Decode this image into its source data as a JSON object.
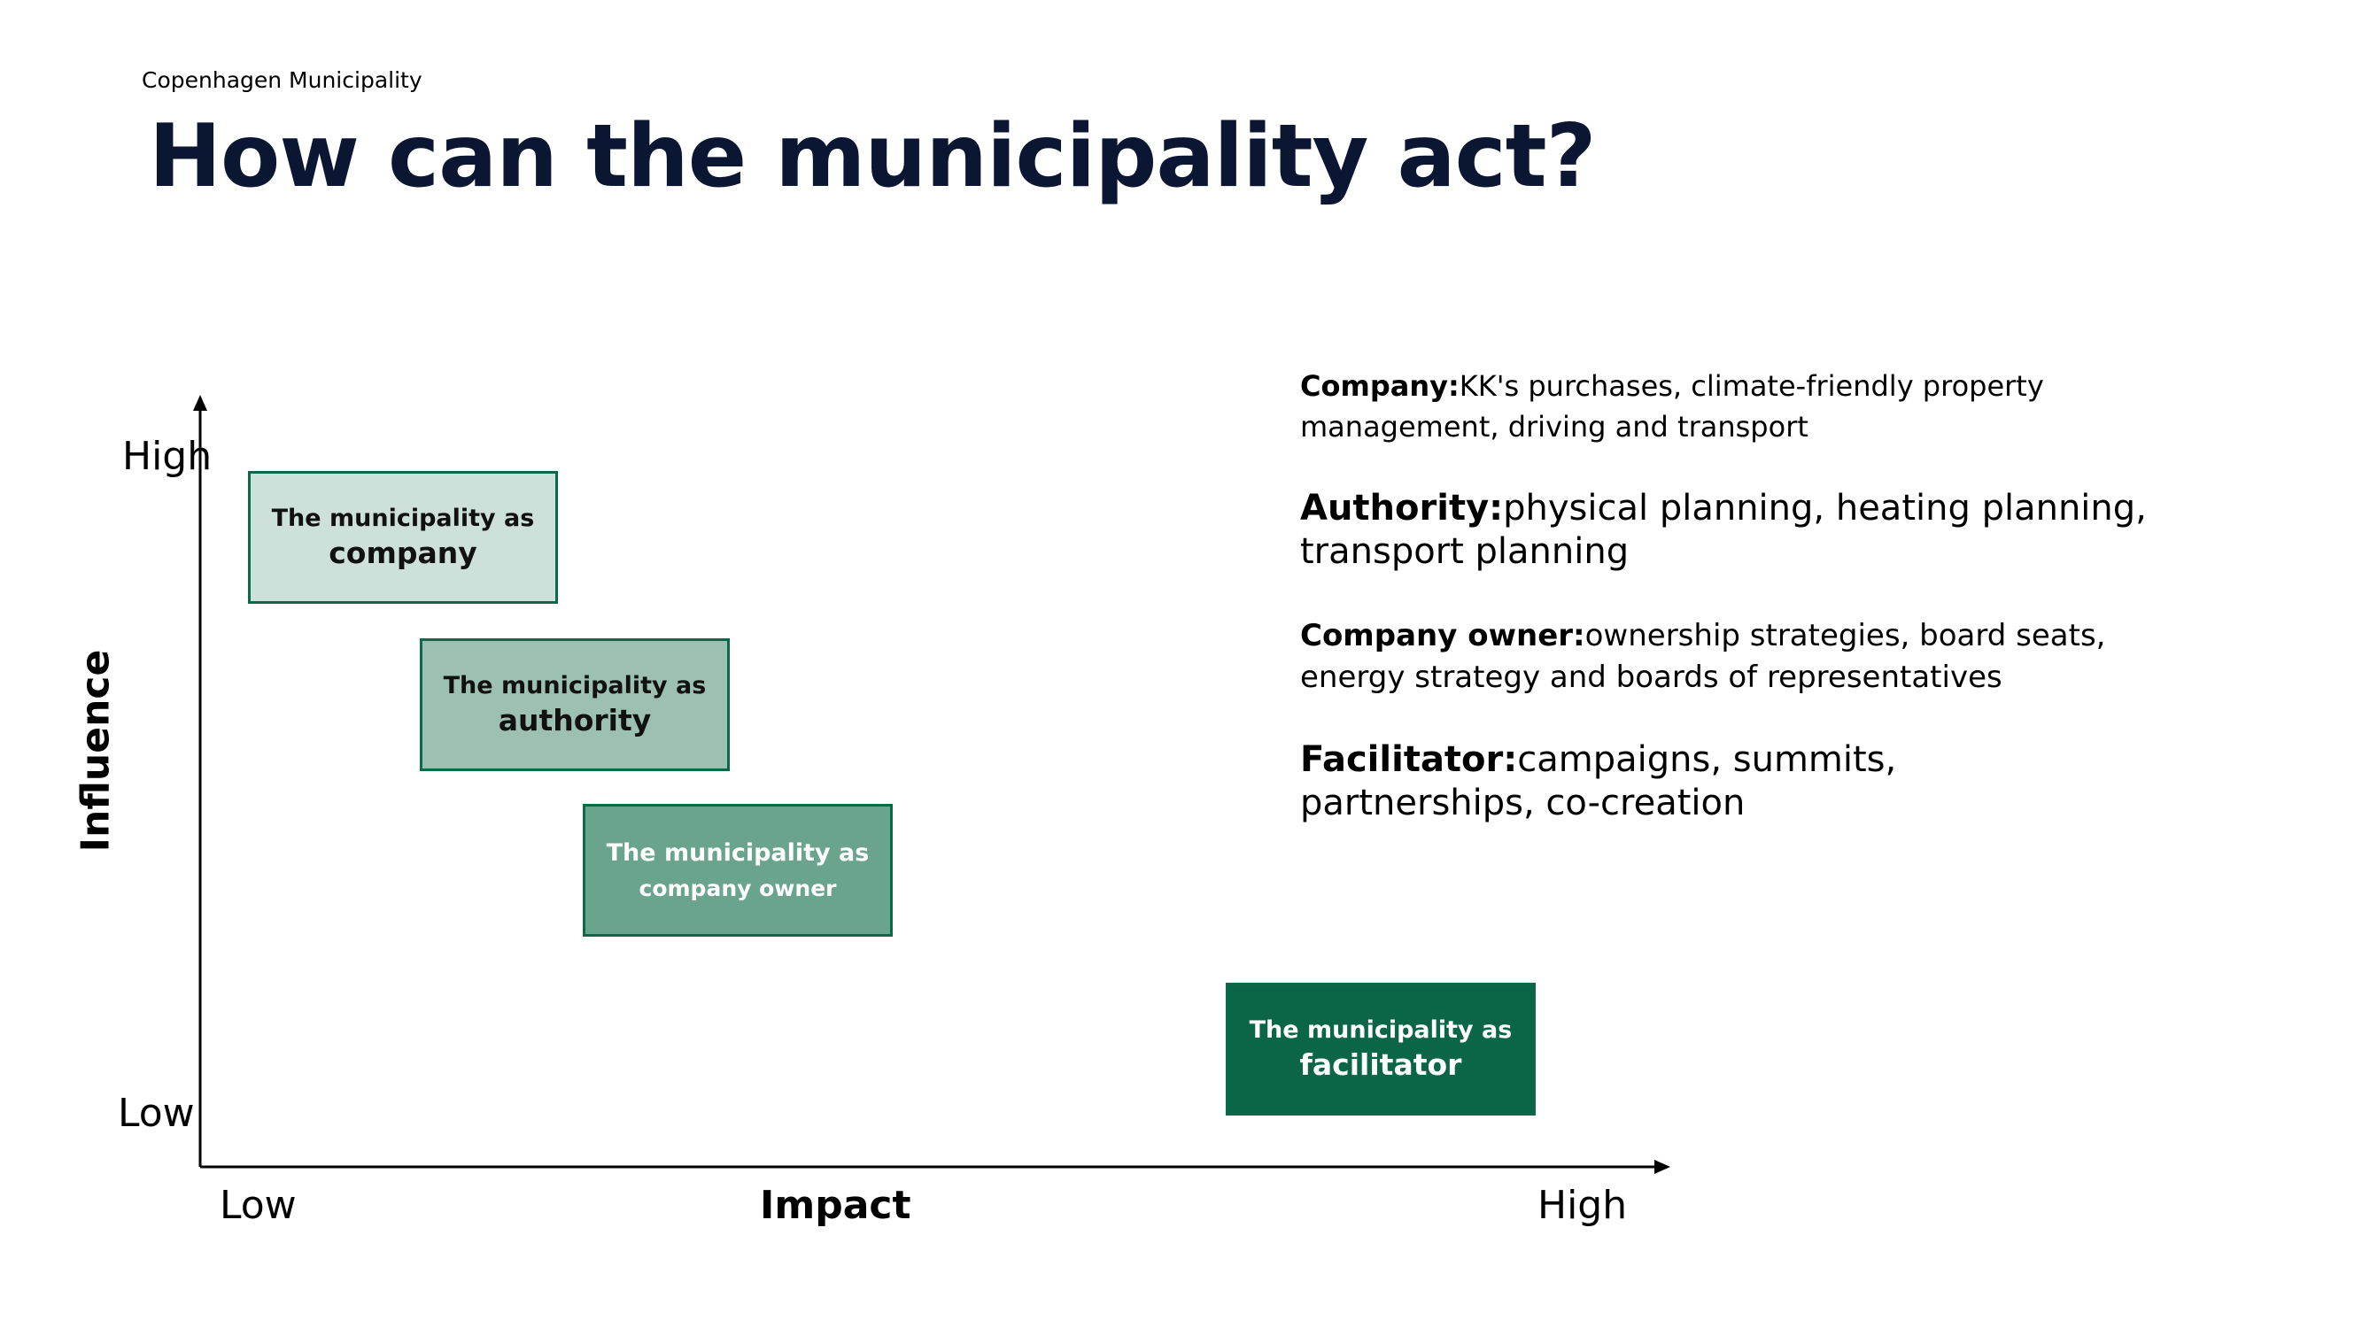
{
  "header": {
    "org": "Copenhagen Municipality",
    "title": "How can the municipality act?"
  },
  "diagram": {
    "y_axis": {
      "title": "Influence",
      "high": "High",
      "low": "Low"
    },
    "x_axis": {
      "title": "Impact",
      "low": "Low",
      "high": "High"
    },
    "boxes": [
      {
        "prefix": "The municipality as",
        "role": "company",
        "influence_level": "high",
        "impact_level": "low",
        "fill": "#cde1da",
        "text_color": "#111111"
      },
      {
        "prefix": "The municipality as",
        "role": "authority",
        "influence_level": "medium-high",
        "impact_level": "low-medium",
        "fill": "#9cc1b3",
        "text_color": "#111111"
      },
      {
        "prefix": "The municipality as",
        "role": "company owner",
        "influence_level": "medium",
        "impact_level": "medium",
        "fill": "#6aa48d",
        "text_color": "#ffffff"
      },
      {
        "prefix": "The municipality as",
        "role": "facilitator",
        "influence_level": "low",
        "impact_level": "high",
        "fill": "#0a6646",
        "text_color": "#ffffff"
      }
    ]
  },
  "descriptions": [
    {
      "label": "Company:",
      "text": "KK's purchases, climate-friendly property management, driving and transport"
    },
    {
      "label": "Authority:",
      "text": "physical planning, heating planning, transport planning"
    },
    {
      "label": "Company owner:",
      "text": "ownership strategies, board seats, energy strategy and boards of representatives"
    },
    {
      "label": "Facilitator:",
      "text": "campaigns, summits, partnerships, co-creation"
    }
  ],
  "colors": {
    "title": "#0b1633",
    "border": "#0a6a48"
  }
}
